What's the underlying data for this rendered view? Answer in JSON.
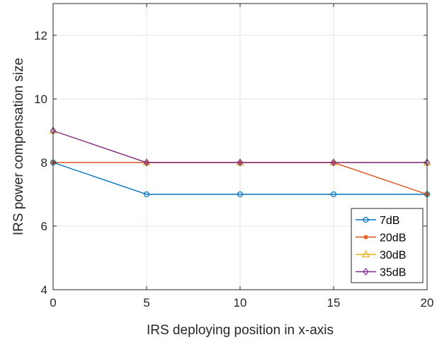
{
  "chart_data": {
    "type": "line",
    "title": "",
    "xlabel": "IRS deploying position in x-axis",
    "ylabel": "IRS power compensation size",
    "x": [
      0,
      5,
      10,
      15,
      20
    ],
    "xlim": [
      0,
      20
    ],
    "ylim": [
      4,
      13
    ],
    "xticks": [
      "0",
      "5",
      "10",
      "15",
      "20"
    ],
    "yticks": [
      "4",
      "6",
      "8",
      "10",
      "12"
    ],
    "grid": true,
    "legend_position": "bottom-right",
    "series": [
      {
        "name": "7dB",
        "values": [
          8,
          7,
          7,
          7,
          7
        ],
        "color": "#0072BD",
        "marker": "circle"
      },
      {
        "name": "20dB",
        "values": [
          8,
          8,
          8,
          8,
          7
        ],
        "color": "#D95319",
        "marker": "asterisk"
      },
      {
        "name": "30dB",
        "values": [
          9,
          8,
          8,
          8,
          8
        ],
        "color": "#EDB120",
        "marker": "triangle"
      },
      {
        "name": "35dB",
        "values": [
          9,
          8,
          8,
          8,
          8
        ],
        "color": "#7E2F8E",
        "marker": "diamond"
      }
    ]
  }
}
